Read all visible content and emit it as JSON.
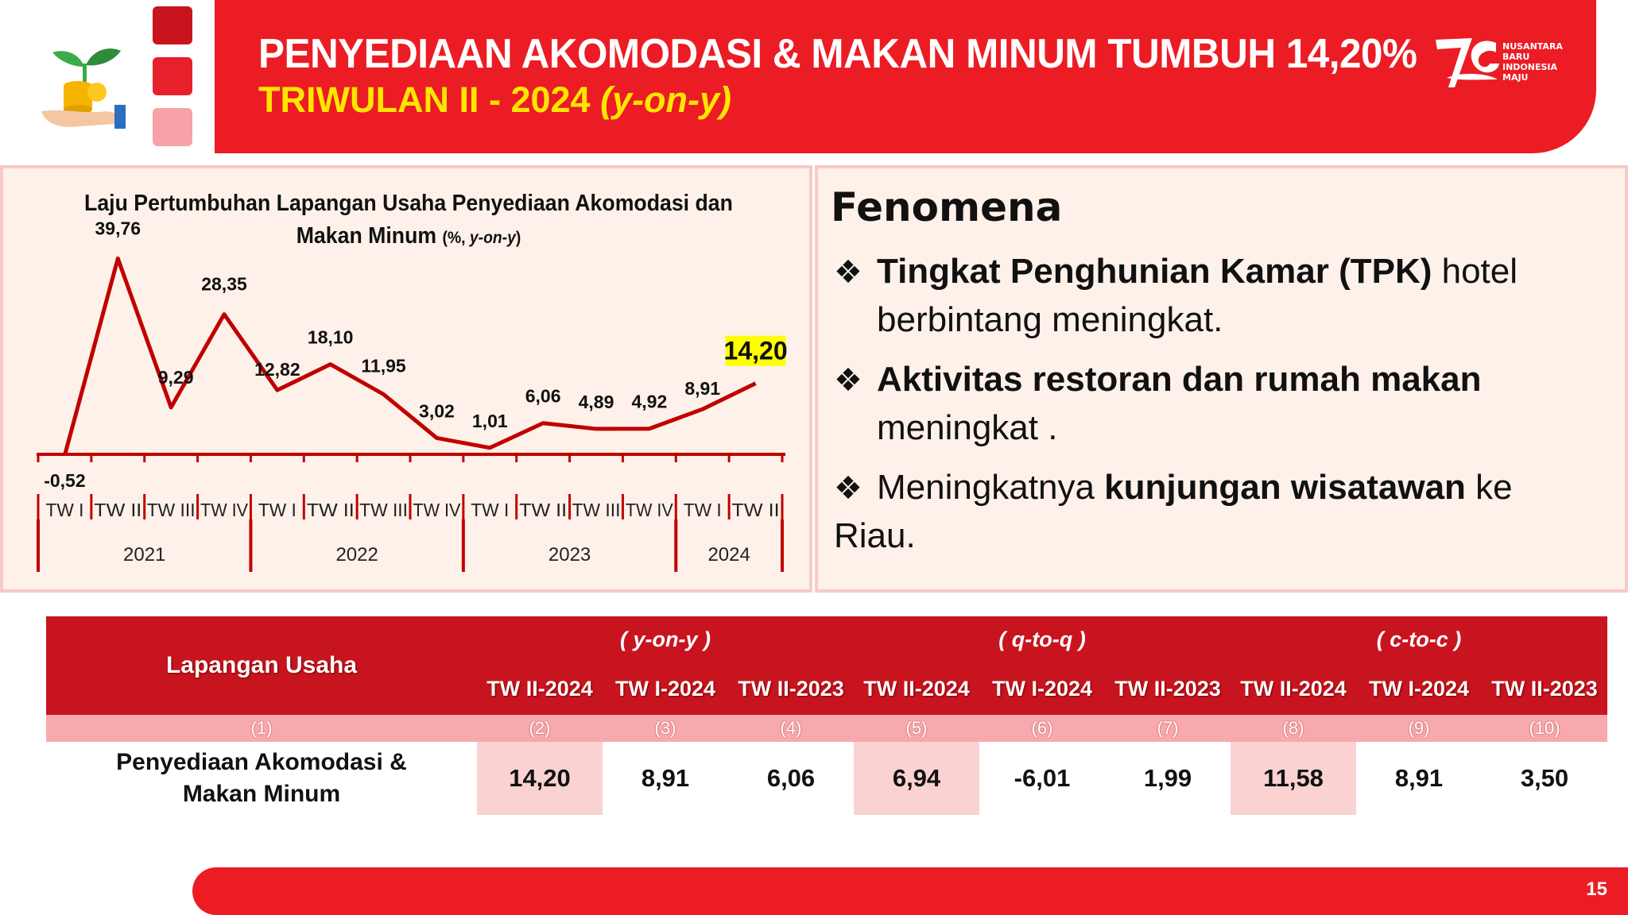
{
  "header": {
    "title": "PENYEDIAAN AKOMODASI & MAKAN MINUM TUMBUH 14,20%",
    "subtitle_main": "TRIWULAN II - 2024 ",
    "subtitle_italic": "(y-on-y)",
    "logo_text": [
      "NUSANTARA",
      "BARU",
      "INDONESIA",
      "MAJU"
    ]
  },
  "chart_data": {
    "type": "line",
    "title_main": "Laju Pertumbuhan Lapangan Usaha Penyediaan Akomodasi dan Makan Minum ",
    "title_unit_prefix": "(%, ",
    "title_unit_italic": "y-on-y",
    "title_unit_suffix": ")",
    "categories": [
      "TW I",
      "TW II",
      "TW III",
      "TW IV",
      "TW I",
      "TW II",
      "TW III",
      "TW IV",
      "TW I",
      "TW II",
      "TW III",
      "TW IV",
      "TW I",
      "TW II"
    ],
    "years": [
      {
        "label": "2021",
        "span": 4
      },
      {
        "label": "2022",
        "span": 4
      },
      {
        "label": "2023",
        "span": 4
      },
      {
        "label": "2024",
        "span": 2
      }
    ],
    "values": [
      -0.52,
      39.76,
      9.29,
      28.35,
      12.82,
      18.1,
      11.95,
      3.02,
      1.01,
      6.06,
      4.89,
      4.92,
      8.91,
      14.2
    ],
    "labels": [
      "-0,52",
      "39,76",
      "9,29",
      "28,35",
      "12,82",
      "18,10",
      "11,95",
      "3,02",
      "1,01",
      "6,06",
      "4,89",
      "4,92",
      "8,91",
      "14,20"
    ],
    "highlight_last": true,
    "highlight_color": "#ffff00",
    "line_color": "#c00000"
  },
  "fenomena": {
    "title": "Fenomena",
    "bullet": "❖",
    "items": [
      {
        "bold": "Tingkat Penghunian Kamar (TPK)",
        "rest": " hotel",
        "line2": "berbintang meningkat."
      },
      {
        "bold": "Aktivitas restoran dan rumah makan",
        "rest": "",
        "line2": "meningkat ."
      },
      {
        "pre": "Meningkatnya ",
        "bold": "kunjungan wisatawan",
        "rest": " ke Riau."
      }
    ]
  },
  "table": {
    "row_header": "Lapangan Usaha",
    "groups": [
      "( y-on-y )",
      "( q-to-q )",
      "( c-to-c )"
    ],
    "columns": [
      "TW II-2024",
      "TW I-2024",
      "TW II-2023",
      "TW II-2024",
      "TW I-2024",
      "TW II-2023",
      "TW II-2024",
      "TW I-2024",
      "TW II-2023"
    ],
    "col_numbers": [
      "(1)",
      "(2)",
      "(3)",
      "(4)",
      "(5)",
      "(6)",
      "(7)",
      "(8)",
      "(9)",
      "(10)"
    ],
    "row_name_line1": "Penyediaan Akomodasi &",
    "row_name_line2": "Makan Minum",
    "values": [
      "14,20",
      "8,91",
      "6,06",
      "6,94",
      "-6,01",
      "1,99",
      "11,58",
      "8,91",
      "3,50"
    ]
  },
  "page_number": "15",
  "colors": {
    "brand_red": "#ec1c24",
    "dark_red": "#c8141f",
    "pink": "#f8a9ad",
    "accent_yellow": "#ffe600"
  }
}
